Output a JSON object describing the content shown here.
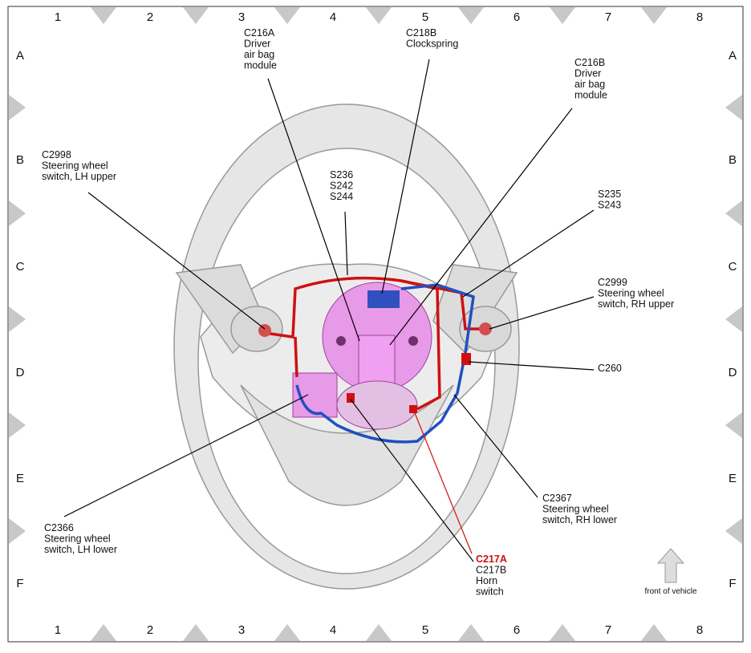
{
  "grid": {
    "columns": [
      "1",
      "2",
      "3",
      "4",
      "5",
      "6",
      "7",
      "8"
    ],
    "rows": [
      "A",
      "B",
      "C",
      "D",
      "E",
      "F"
    ]
  },
  "callouts": [
    {
      "lines": [
        "C216A",
        "Driver",
        "air bag",
        "module"
      ]
    },
    {
      "lines": [
        "C218B",
        "Clockspring"
      ]
    },
    {
      "lines": [
        "C216B",
        "Driver",
        "air bag",
        "module"
      ]
    },
    {
      "lines": [
        "C2998",
        "Steering wheel",
        "switch, LH upper"
      ]
    },
    {
      "lines": [
        "S236",
        "S242",
        "S244"
      ]
    },
    {
      "lines": [
        "S235",
        "S243"
      ]
    },
    {
      "lines": [
        "C2999",
        "Steering wheel",
        "switch, RH upper"
      ]
    },
    {
      "lines": [
        "C260"
      ]
    },
    {
      "lines": [
        "C2366",
        "Steering wheel",
        "switch, LH lower"
      ]
    },
    {
      "lines": [
        "C2367",
        "Steering wheel",
        "switch, RH lower"
      ]
    },
    {
      "lines": [
        "C217A",
        "C217B",
        "Horn",
        "switch"
      ]
    }
  ],
  "direction_label": "front of vehicle"
}
